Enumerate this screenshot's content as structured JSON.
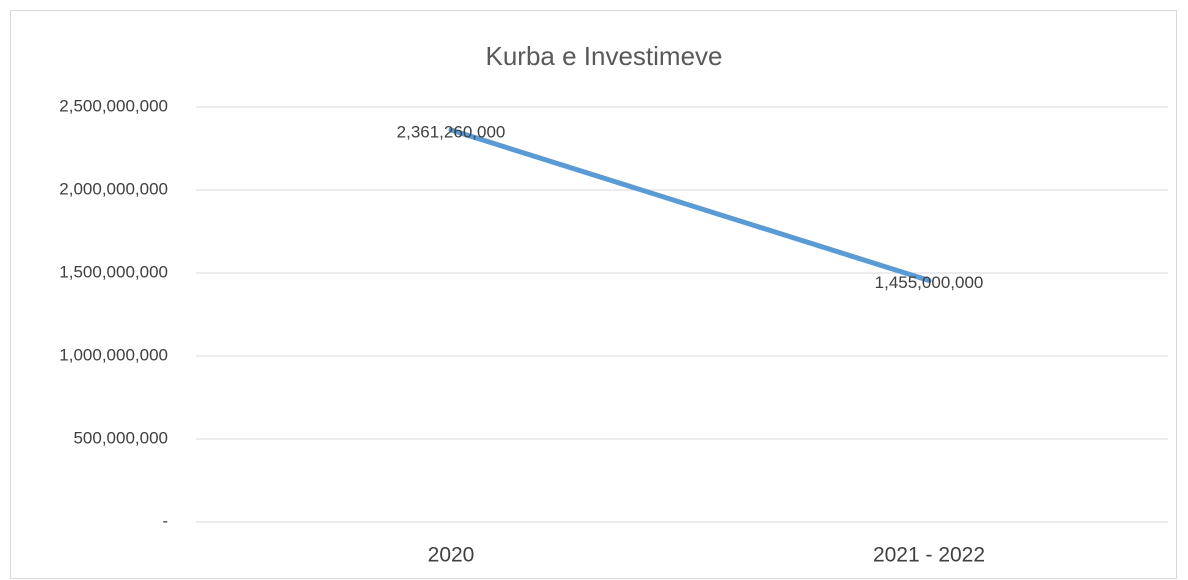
{
  "chart_data": {
    "type": "line",
    "title": "Kurba e Investimeve",
    "categories": [
      "2020",
      "2021 - 2022"
    ],
    "series": [
      {
        "color": "#5b9bd5",
        "values": [
          2361260000,
          1455000000
        ],
        "value_labels": [
          "2,361,260,000",
          "1,455,000,000"
        ]
      }
    ],
    "ylim": [
      0,
      2500000000
    ],
    "yticks": [
      {
        "value": 0,
        "label": "-"
      },
      {
        "value": 500000000,
        "label": "500,000,000"
      },
      {
        "value": 1000000000,
        "label": "1,000,000,000"
      },
      {
        "value": 1500000000,
        "label": "1,500,000,000"
      },
      {
        "value": 2000000000,
        "label": "2,000,000,000"
      },
      {
        "value": 2500000000,
        "label": "2,500,000,000"
      }
    ],
    "grid": true
  }
}
